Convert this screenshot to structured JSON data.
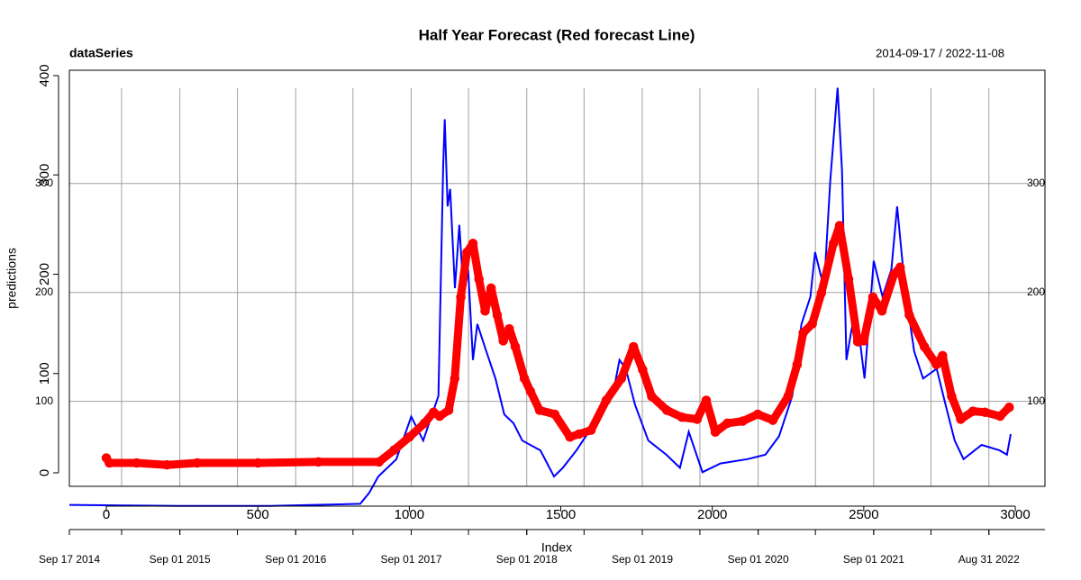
{
  "chart_data": [
    {
      "type": "line",
      "title": "Half Year Forecast (Red forecast Line)",
      "subtitle": "dataSeries",
      "date_range": "2014-09-17 / 2022-11-08",
      "xlim": [
        "2014-09-17",
        "2022-11-08"
      ],
      "ylim": [
        22,
        404
      ],
      "yticks": [
        100,
        200,
        300
      ],
      "xticks": [
        {
          "value": "2014-09-17",
          "label": "Sep 17 2014"
        },
        {
          "value": "2015-09-01",
          "label": "Sep 01 2015"
        },
        {
          "value": "2016-09-01",
          "label": "Sep 01 2016"
        },
        {
          "value": "2017-09-01",
          "label": "Sep 01 2017"
        },
        {
          "value": "2018-09-01",
          "label": "Sep 01 2018"
        },
        {
          "value": "2019-09-01",
          "label": "Sep 01 2019"
        },
        {
          "value": "2020-09-01",
          "label": "Sep 01 2020"
        },
        {
          "value": "2021-09-01",
          "label": "Sep 01 2021"
        },
        {
          "value": "2022-08-31",
          "label": "Aug 31 2022"
        }
      ],
      "minor_xticks": [
        "2015-03-01",
        "2015-09-01",
        "2016-03-01",
        "2016-09-01",
        "2017-03-01",
        "2017-09-01",
        "2018-03-01",
        "2018-09-01",
        "2019-03-01",
        "2019-09-01",
        "2020-03-01",
        "2020-09-01",
        "2021-03-01",
        "2021-09-01",
        "2022-03-01",
        "2022-08-31"
      ],
      "grid": true,
      "x": [
        "2014-09-17",
        "2015-09-01",
        "2016-06-12",
        "2017-03-24",
        "2017-04-21",
        "2017-05-20",
        "2017-07-16",
        "2017-09-01",
        "2017-10-09",
        "2017-11-26",
        "2017-12-11",
        "2017-12-16",
        "2017-12-25",
        "2018-01-02",
        "2018-01-17",
        "2018-01-31",
        "2018-02-14",
        "2018-02-28",
        "2018-03-15",
        "2018-03-29",
        "2018-04-26",
        "2018-05-25",
        "2018-06-22",
        "2018-07-21",
        "2018-08-18",
        "2018-10-14",
        "2018-11-26",
        "2018-12-24",
        "2019-02-05",
        "2019-04-03",
        "2019-05-30",
        "2019-06-21",
        "2019-07-11",
        "2019-08-09",
        "2019-09-20",
        "2019-11-16",
        "2019-12-29",
        "2020-01-26",
        "2020-03-09",
        "2020-05-05",
        "2020-07-29",
        "2020-09-24",
        "2020-11-06",
        "2020-12-18",
        "2021-01-16",
        "2021-02-13",
        "2021-02-28",
        "2021-03-28",
        "2021-04-17",
        "2021-05-10",
        "2021-05-24",
        "2021-06-07",
        "2021-07-06",
        "2021-08-03",
        "2021-09-01",
        "2021-09-29",
        "2021-10-27",
        "2021-11-14",
        "2021-12-09",
        "2022-01-07",
        "2022-02-04",
        "2022-03-19",
        "2022-04-16",
        "2022-05-15",
        "2022-06-12",
        "2022-08-08",
        "2022-10-04",
        "2022-10-27",
        "2022-11-08"
      ],
      "series": [
        {
          "color": "#0000ff",
          "values": [
            5,
            4,
            4,
            6,
            16,
            31,
            47,
            86,
            64,
            105,
            317,
            359,
            279,
            295,
            204,
            262,
            196,
            221,
            138,
            171,
            146,
            121,
            88,
            80,
            64,
            55,
            31,
            39,
            55,
            80,
            105,
            138,
            130,
            97,
            64,
            51,
            39,
            72,
            35,
            43,
            47,
            51,
            68,
            105,
            171,
            196,
            237,
            204,
            303,
            388,
            312,
            138,
            188,
            121,
            229,
            196,
            221,
            279,
            204,
            146,
            121,
            130,
            97,
            64,
            47,
            60,
            55,
            51,
            70
          ]
        }
      ]
    },
    {
      "type": "scatter",
      "xlabel": "Index",
      "ylabel": "predictions",
      "xlim": [
        -122,
        3098
      ],
      "ylim": [
        -13.6,
        405.4
      ],
      "xticks": [
        0,
        500,
        1000,
        1500,
        2000,
        2500,
        3000
      ],
      "yticks": [
        0,
        100,
        200,
        300,
        400
      ],
      "color": "#ff0000",
      "x": [
        0,
        10,
        100,
        200,
        300,
        500,
        700,
        900,
        950,
        1000,
        1050,
        1080,
        1100,
        1130,
        1150,
        1170,
        1190,
        1210,
        1230,
        1250,
        1270,
        1290,
        1310,
        1330,
        1350,
        1380,
        1400,
        1430,
        1480,
        1530,
        1560,
        1600,
        1650,
        1700,
        1740,
        1770,
        1800,
        1850,
        1900,
        1950,
        1980,
        2010,
        2050,
        2100,
        2150,
        2200,
        2250,
        2280,
        2300,
        2330,
        2360,
        2400,
        2420,
        2450,
        2480,
        2500,
        2530,
        2560,
        2600,
        2620,
        2650,
        2700,
        2740,
        2760,
        2790,
        2820,
        2860,
        2900,
        2950,
        2980
      ],
      "values": [
        15,
        10,
        10,
        8,
        10,
        10,
        11,
        11,
        23,
        36,
        50,
        61,
        57,
        63,
        95,
        177,
        222,
        231,
        195,
        163,
        186,
        159,
        133,
        145,
        127,
        95,
        82,
        63,
        59,
        36,
        39,
        43,
        73,
        95,
        127,
        104,
        77,
        63,
        56,
        54,
        73,
        41,
        50,
        52,
        59,
        53,
        77,
        109,
        141,
        150,
        181,
        231,
        249,
        195,
        132,
        133,
        177,
        163,
        200,
        207,
        159,
        127,
        109,
        118,
        77,
        54,
        62,
        61,
        57,
        66
      ]
    }
  ]
}
